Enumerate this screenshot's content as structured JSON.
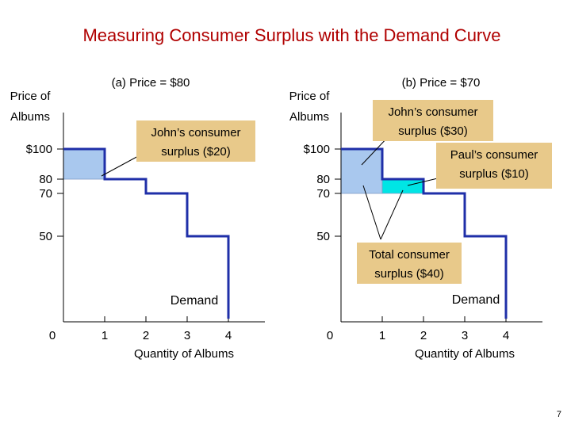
{
  "slide": {
    "title": "Measuring Consumer Surplus with the Demand Curve",
    "page_number": "7",
    "title_color": "#b00000"
  },
  "chart_data": [
    {
      "type": "step",
      "panel_title": "(a) Price = $80",
      "ylabel": [
        "Price of",
        "Albums"
      ],
      "xlabel": "Quantity of Albums",
      "x_ticks": [
        "0",
        "1",
        "2",
        "3",
        "4"
      ],
      "y_ticks": [
        "$100",
        "80",
        "70",
        "50"
      ],
      "y_tick_values": [
        100,
        80,
        70,
        50
      ],
      "demand_steps": [
        {
          "quantity": 1,
          "price": 100
        },
        {
          "quantity": 2,
          "price": 80
        },
        {
          "quantity": 3,
          "price": 70
        },
        {
          "quantity": 4,
          "price": 50
        }
      ],
      "market_price": 80,
      "surplus_areas": [
        {
          "from_q": 0,
          "to_q": 1,
          "from_p": 80,
          "to_p": 100,
          "color": "#a9c8ee"
        }
      ],
      "curve_label": "Demand",
      "annotations": [
        {
          "text": [
            "John’s consumer",
            "surplus ($20)"
          ]
        }
      ]
    },
    {
      "type": "step",
      "panel_title": "(b) Price = $70",
      "ylabel": [
        "Price of",
        "Albums"
      ],
      "xlabel": "Quantity of Albums",
      "x_ticks": [
        "0",
        "1",
        "2",
        "3",
        "4"
      ],
      "y_ticks": [
        "$100",
        "80",
        "70",
        "50"
      ],
      "y_tick_values": [
        100,
        80,
        70,
        50
      ],
      "demand_steps": [
        {
          "quantity": 1,
          "price": 100
        },
        {
          "quantity": 2,
          "price": 80
        },
        {
          "quantity": 3,
          "price": 70
        },
        {
          "quantity": 4,
          "price": 50
        }
      ],
      "market_price": 70,
      "surplus_areas": [
        {
          "from_q": 0,
          "to_q": 1,
          "from_p": 70,
          "to_p": 100,
          "color": "#a9c8ee"
        },
        {
          "from_q": 1,
          "to_q": 2,
          "from_p": 70,
          "to_p": 80,
          "color": "#00e5e5"
        }
      ],
      "curve_label": "Demand",
      "annotations": [
        {
          "text": [
            "John’s consumer",
            "surplus ($30)"
          ]
        },
        {
          "text": [
            "Paul’s consumer",
            "surplus ($10)"
          ]
        },
        {
          "text": [
            "Total consumer",
            "surplus ($40)"
          ]
        }
      ]
    }
  ],
  "colors": {
    "demand_line": "#1f2fa8",
    "callout_fill": "#e8c98a",
    "axis": "#000000"
  }
}
